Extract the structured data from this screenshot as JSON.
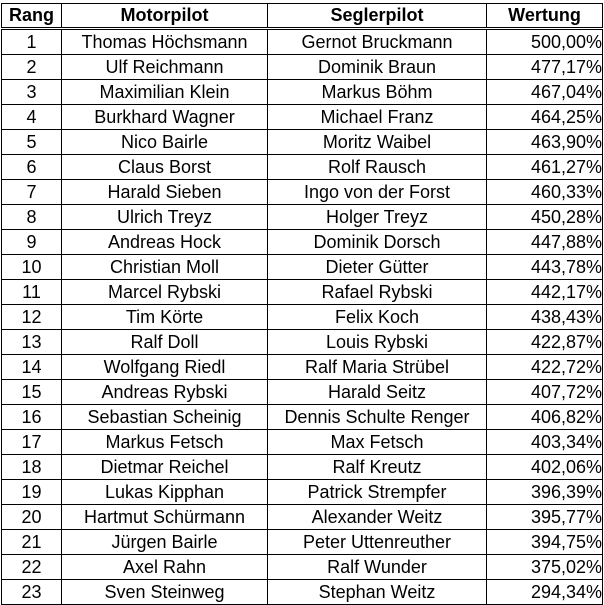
{
  "table": {
    "headers": {
      "rang": "Rang",
      "motorpilot": "Motorpilot",
      "seglerpilot": "Seglerpilot",
      "wertung": "Wertung"
    },
    "rows": [
      {
        "rang": "1",
        "motorpilot": "Thomas Höchsmann",
        "seglerpilot": "Gernot Bruckmann",
        "wertung": "500,00%"
      },
      {
        "rang": "2",
        "motorpilot": "Ulf Reichmann",
        "seglerpilot": "Dominik Braun",
        "wertung": "477,17%"
      },
      {
        "rang": "3",
        "motorpilot": "Maximilian Klein",
        "seglerpilot": "Markus Böhm",
        "wertung": "467,04%"
      },
      {
        "rang": "4",
        "motorpilot": "Burkhard Wagner",
        "seglerpilot": "Michael Franz",
        "wertung": "464,25%"
      },
      {
        "rang": "5",
        "motorpilot": "Nico Bairle",
        "seglerpilot": "Moritz Waibel",
        "wertung": "463,90%"
      },
      {
        "rang": "6",
        "motorpilot": "Claus Borst",
        "seglerpilot": "Rolf Rausch",
        "wertung": "461,27%"
      },
      {
        "rang": "7",
        "motorpilot": "Harald Sieben",
        "seglerpilot": "Ingo von der Forst",
        "wertung": "460,33%"
      },
      {
        "rang": "8",
        "motorpilot": "Ulrich Treyz",
        "seglerpilot": "Holger Treyz",
        "wertung": "450,28%"
      },
      {
        "rang": "9",
        "motorpilot": "Andreas Hock",
        "seglerpilot": "Dominik Dorsch",
        "wertung": "447,88%"
      },
      {
        "rang": "10",
        "motorpilot": "Christian Moll",
        "seglerpilot": "Dieter Gütter",
        "wertung": "443,78%"
      },
      {
        "rang": "11",
        "motorpilot": "Marcel Rybski",
        "seglerpilot": "Rafael Rybski",
        "wertung": "442,17%"
      },
      {
        "rang": "12",
        "motorpilot": "Tim Körte",
        "seglerpilot": "Felix Koch",
        "wertung": "438,43%"
      },
      {
        "rang": "13",
        "motorpilot": "Ralf Doll",
        "seglerpilot": "Louis Rybski",
        "wertung": "422,87%"
      },
      {
        "rang": "14",
        "motorpilot": "Wolfgang Riedl",
        "seglerpilot": "Ralf Maria Strübel",
        "wertung": "422,72%"
      },
      {
        "rang": "15",
        "motorpilot": "Andreas Rybski",
        "seglerpilot": "Harald Seitz",
        "wertung": "407,72%"
      },
      {
        "rang": "16",
        "motorpilot": "Sebastian Scheinig",
        "seglerpilot": "Dennis Schulte Renger",
        "wertung": "406,82%"
      },
      {
        "rang": "17",
        "motorpilot": "Markus Fetsch",
        "seglerpilot": "Max Fetsch",
        "wertung": "403,34%"
      },
      {
        "rang": "18",
        "motorpilot": "Dietmar Reichel",
        "seglerpilot": "Ralf Kreutz",
        "wertung": "402,06%"
      },
      {
        "rang": "19",
        "motorpilot": "Lukas Kipphan",
        "seglerpilot": "Patrick Strempfer",
        "wertung": "396,39%"
      },
      {
        "rang": "20",
        "motorpilot": "Hartmut  Schürmann",
        "seglerpilot": "Alexander Weitz",
        "wertung": "395,77%"
      },
      {
        "rang": "21",
        "motorpilot": "Jürgen Bairle",
        "seglerpilot": "Peter Uttenreuther",
        "wertung": "394,75%"
      },
      {
        "rang": "22",
        "motorpilot": "Axel Rahn",
        "seglerpilot": "Ralf Wunder",
        "wertung": "375,02%"
      },
      {
        "rang": "23",
        "motorpilot": "Sven Steinweg",
        "seglerpilot": "Stephan Weitz",
        "wertung": "294,34%"
      }
    ]
  }
}
